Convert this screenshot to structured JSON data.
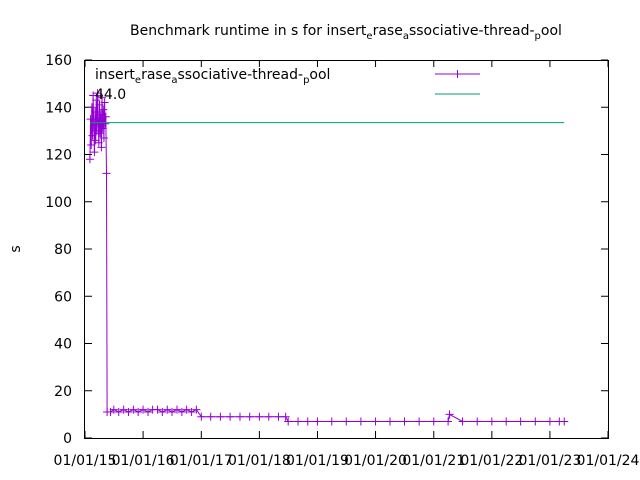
{
  "chart_data": {
    "type": "line",
    "title": {
      "pre": "Benchmark runtime in s for insert",
      "s1": "e",
      "mid": "rase",
      "s2": "a",
      "post": "ssociative-thread-",
      "s3": "p",
      "end": "ool"
    },
    "ylabel": "s",
    "xlabel": "",
    "ylim": [
      0,
      160
    ],
    "yticks": [
      "0",
      "20",
      "40",
      "60",
      "80",
      "100",
      "120",
      "140",
      "160"
    ],
    "xlim": [
      "2015-01-01",
      "2024-01-01"
    ],
    "xticks": [
      "01/01/15",
      "01/01/16",
      "01/01/17",
      "01/01/18",
      "01/01/19",
      "01/01/20",
      "01/01/21",
      "01/01/22",
      "01/01/23",
      "01/01/24"
    ],
    "annotation": {
      "pre": "insert",
      "s1": "e",
      "mid": "rase",
      "s2": "a",
      "post": "ssociative-thread-",
      "s3": "p",
      "end": "ool",
      "value": "44.0"
    },
    "legend_position": "top-right",
    "series": [
      {
        "color": "#9400d3",
        "marker": "+",
        "points": [
          [
            "2015-02-01",
            118
          ],
          [
            "2015-02-05",
            135
          ],
          [
            "2015-02-09",
            124
          ],
          [
            "2015-02-13",
            140
          ],
          [
            "2015-02-17",
            128
          ],
          [
            "2015-02-21",
            145
          ],
          [
            "2015-02-25",
            132
          ],
          [
            "2015-03-01",
            121
          ],
          [
            "2015-03-05",
            138
          ],
          [
            "2015-03-09",
            126
          ],
          [
            "2015-03-13",
            143
          ],
          [
            "2015-03-17",
            130
          ],
          [
            "2015-03-21",
            146
          ],
          [
            "2015-03-25",
            134
          ],
          [
            "2015-03-29",
            125
          ],
          [
            "2015-04-02",
            141
          ],
          [
            "2015-04-06",
            129
          ],
          [
            "2015-04-10",
            137
          ],
          [
            "2015-04-14",
            123
          ],
          [
            "2015-04-18",
            144
          ],
          [
            "2015-04-22",
            131
          ],
          [
            "2015-04-26",
            139
          ],
          [
            "2015-04-30",
            127
          ],
          [
            "2015-05-04",
            142
          ],
          [
            "2015-05-08",
            133
          ],
          [
            "2015-05-12",
            136
          ],
          [
            "2015-05-16",
            112
          ],
          [
            "2015-05-20",
            11
          ],
          [
            "2015-06-10",
            11
          ],
          [
            "2015-07-01",
            12
          ],
          [
            "2015-08-01",
            11
          ],
          [
            "2015-09-01",
            12
          ],
          [
            "2015-10-01",
            11
          ],
          [
            "2015-11-01",
            12
          ],
          [
            "2015-12-01",
            11
          ],
          [
            "2016-01-01",
            12
          ],
          [
            "2016-02-01",
            11
          ],
          [
            "2016-03-01",
            12
          ],
          [
            "2016-04-01",
            12
          ],
          [
            "2016-05-01",
            11
          ],
          [
            "2016-06-01",
            12
          ],
          [
            "2016-07-01",
            11
          ],
          [
            "2016-08-01",
            12
          ],
          [
            "2016-09-01",
            11
          ],
          [
            "2016-10-01",
            12
          ],
          [
            "2016-11-01",
            11
          ],
          [
            "2016-12-01",
            12
          ],
          [
            "2017-01-01",
            9
          ],
          [
            "2017-03-01",
            9
          ],
          [
            "2017-05-01",
            9
          ],
          [
            "2017-07-01",
            9
          ],
          [
            "2017-09-01",
            9
          ],
          [
            "2017-11-01",
            9
          ],
          [
            "2018-01-01",
            9
          ],
          [
            "2018-03-01",
            9
          ],
          [
            "2018-05-01",
            9
          ],
          [
            "2018-06-15",
            9
          ],
          [
            "2018-07-01",
            7
          ],
          [
            "2018-09-01",
            7
          ],
          [
            "2018-11-01",
            7
          ],
          [
            "2019-01-01",
            7
          ],
          [
            "2019-04-01",
            7
          ],
          [
            "2019-07-01",
            7
          ],
          [
            "2019-10-01",
            7
          ],
          [
            "2020-01-01",
            7
          ],
          [
            "2020-04-01",
            7
          ],
          [
            "2020-07-01",
            7
          ],
          [
            "2020-10-01",
            7
          ],
          [
            "2021-01-01",
            7
          ],
          [
            "2021-04-01",
            7
          ],
          [
            "2021-04-10",
            10
          ],
          [
            "2021-07-01",
            7
          ],
          [
            "2021-10-01",
            7
          ],
          [
            "2022-01-01",
            7
          ],
          [
            "2022-04-01",
            7
          ],
          [
            "2022-07-01",
            7
          ],
          [
            "2022-10-01",
            7
          ],
          [
            "2023-01-01",
            7
          ],
          [
            "2023-03-01",
            7
          ],
          [
            "2023-04-01",
            7
          ]
        ]
      },
      {
        "color": "#009e73",
        "marker": "none",
        "points": [
          [
            "2015-02-01",
            133.5
          ],
          [
            "2023-04-01",
            133.5
          ]
        ]
      }
    ]
  }
}
